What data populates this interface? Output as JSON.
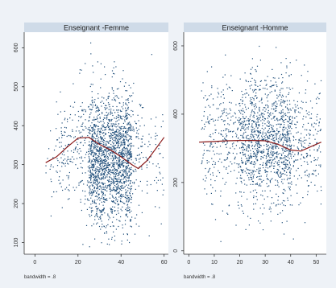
{
  "colors": {
    "background": "#eef2f7",
    "panel_header": "#cfdbe8",
    "plot_area": "#ffffff",
    "points": "#1f4e7a",
    "smooth_line": "#8b1a1a",
    "axis": "#333333"
  },
  "chart_data": [
    {
      "type": "scatter",
      "title": "Enseignant -Femme",
      "note": "bandwidth = .8",
      "xlim": [
        -5,
        62
      ],
      "ylim": [
        70,
        640
      ],
      "x_ticks": [
        "0",
        "20",
        "40",
        "60"
      ],
      "x_tick_values": [
        0,
        20,
        40,
        60
      ],
      "y_ticks": [
        "100",
        "200",
        "300",
        "400",
        "500",
        "600"
      ],
      "y_tick_values": [
        100,
        200,
        300,
        400,
        500,
        600
      ],
      "smoother": {
        "x": [
          5,
          10,
          15,
          20,
          25,
          30,
          35,
          40,
          45,
          48,
          52,
          56,
          60
        ],
        "y": [
          305,
          320,
          345,
          368,
          370,
          352,
          338,
          320,
          300,
          290,
          310,
          340,
          370
        ]
      },
      "scatter_cloud": [
        {
          "x_min": 25,
          "x_max": 45,
          "y_mean": 310,
          "y_sd": 80,
          "count": 1500
        },
        {
          "x_min": 20,
          "x_max": 50,
          "y_mean": 340,
          "y_sd": 85,
          "count": 500
        },
        {
          "x_min": 10,
          "x_max": 20,
          "y_mean": 340,
          "y_sd": 70,
          "count": 120
        },
        {
          "x_min": 5,
          "x_max": 10,
          "y_mean": 300,
          "y_sd": 60,
          "count": 20
        },
        {
          "x_min": 50,
          "x_max": 60,
          "y_mean": 320,
          "y_sd": 70,
          "count": 60
        }
      ]
    },
    {
      "type": "scatter",
      "title": "Enseignant -Homme",
      "note": "bandwidth = .8",
      "xlim": [
        -2,
        54
      ],
      "ylim": [
        -10,
        640
      ],
      "x_ticks": [
        "0",
        "10",
        "20",
        "30",
        "40",
        "50"
      ],
      "x_tick_values": [
        0,
        10,
        20,
        30,
        40,
        50
      ],
      "y_ticks": [
        "0",
        "200",
        "400",
        "600"
      ],
      "y_tick_values": [
        0,
        200,
        400,
        600
      ],
      "smoother": {
        "x": [
          4,
          10,
          15,
          20,
          25,
          30,
          35,
          40,
          44,
          48,
          52
        ],
        "y": [
          318,
          320,
          322,
          323,
          323,
          322,
          312,
          295,
          292,
          305,
          318
        ]
      },
      "scatter_cloud": [
        {
          "x_min": 20,
          "x_max": 40,
          "y_mean": 320,
          "y_sd": 90,
          "count": 1200
        },
        {
          "x_min": 5,
          "x_max": 20,
          "y_mean": 320,
          "y_sd": 95,
          "count": 280
        },
        {
          "x_min": 40,
          "x_max": 52,
          "y_mean": 310,
          "y_sd": 90,
          "count": 240
        }
      ]
    }
  ]
}
